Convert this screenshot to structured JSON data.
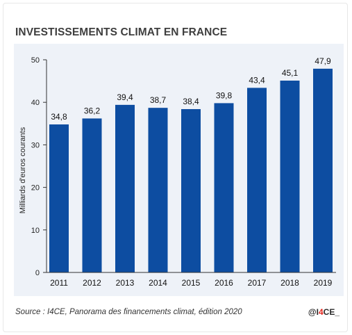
{
  "title": "INVESTISSEMENTS CLIMAT EN FRANCE",
  "source": "Source : I4CE, Panorama des financements climat, édition 2020",
  "logo": "@I4CE_",
  "colors": {
    "bar": "#0d4da1",
    "panel": "#eef2f8",
    "axis": "#333333",
    "logo_accent": "#e2231a"
  },
  "chart_data": {
    "type": "bar",
    "title": "INVESTISSEMENTS CLIMAT EN FRANCE",
    "xlabel": "",
    "ylabel": "Milliards d'euros courants",
    "categories": [
      "2011",
      "2012",
      "2013",
      "2014",
      "2015",
      "2016",
      "2017",
      "2018",
      "2019"
    ],
    "values": [
      34.8,
      36.2,
      39.4,
      38.7,
      38.4,
      39.8,
      43.4,
      45.1,
      47.9
    ],
    "value_labels": [
      "34,8",
      "36,2",
      "39,4",
      "38,7",
      "38,4",
      "39,8",
      "43,4",
      "45,1",
      "47,9"
    ],
    "ylim": [
      0,
      50
    ],
    "yticks": [
      0,
      10,
      20,
      30,
      40,
      50
    ],
    "grid": false,
    "legend": "none"
  }
}
